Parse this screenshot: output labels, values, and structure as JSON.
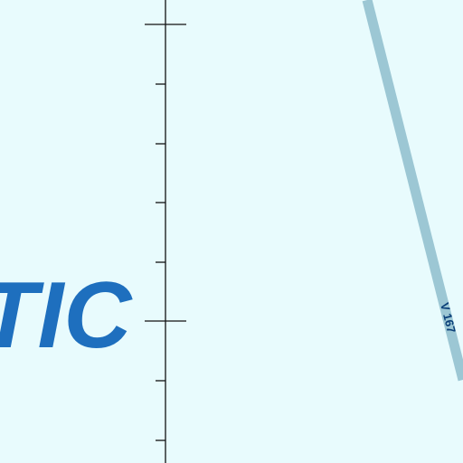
{
  "map": {
    "water_label": "TIC",
    "airway": {
      "label": "V 167",
      "color": "#9cc7d4"
    },
    "background_color": "#e8fbfd",
    "label_color": "#1e6fbe",
    "meridian_color": "#111111"
  }
}
